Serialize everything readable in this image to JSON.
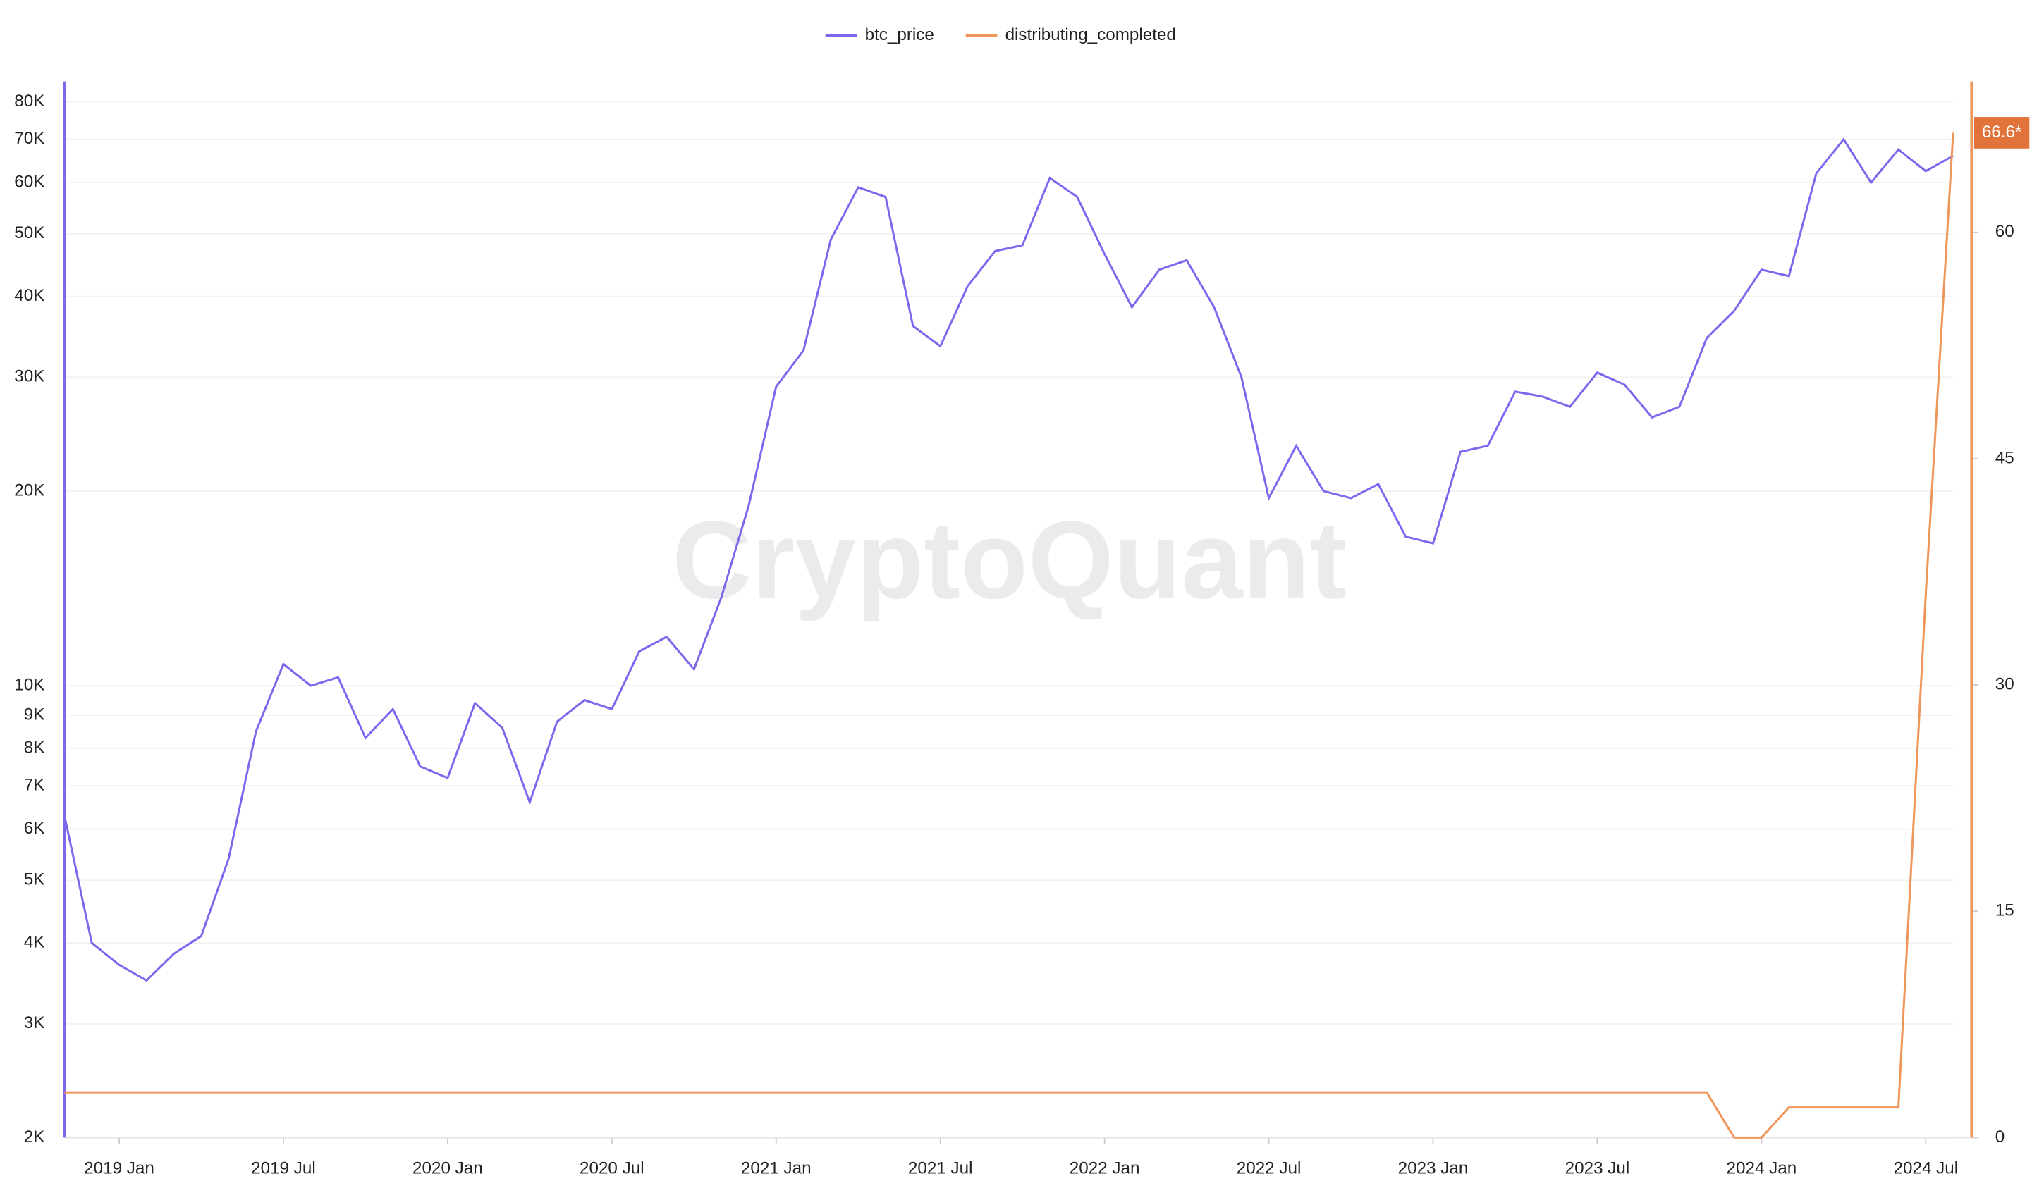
{
  "chart_data": {
    "type": "line",
    "watermark": "CryptoQuant",
    "x": [
      "2018-11",
      "2018-12",
      "2019-01",
      "2019-02",
      "2019-03",
      "2019-04",
      "2019-05",
      "2019-06",
      "2019-07",
      "2019-08",
      "2019-09",
      "2019-10",
      "2019-11",
      "2019-12",
      "2020-01",
      "2020-02",
      "2020-03",
      "2020-04",
      "2020-05",
      "2020-06",
      "2020-07",
      "2020-08",
      "2020-09",
      "2020-10",
      "2020-11",
      "2020-12",
      "2021-01",
      "2021-02",
      "2021-03",
      "2021-04",
      "2021-05",
      "2021-06",
      "2021-07",
      "2021-08",
      "2021-09",
      "2021-10",
      "2021-11",
      "2021-12",
      "2022-01",
      "2022-02",
      "2022-03",
      "2022-04",
      "2022-05",
      "2022-06",
      "2022-07",
      "2022-08",
      "2022-09",
      "2022-10",
      "2022-11",
      "2022-12",
      "2023-01",
      "2023-02",
      "2023-03",
      "2023-04",
      "2023-05",
      "2023-06",
      "2023-07",
      "2023-08",
      "2023-09",
      "2023-10",
      "2023-11",
      "2023-12",
      "2024-01",
      "2024-02",
      "2024-03",
      "2024-04",
      "2024-05",
      "2024-06",
      "2024-07",
      "2024-08"
    ],
    "xlim": [
      "2018-11",
      "2024-08"
    ],
    "xticks": [
      {
        "value": "2019-01",
        "label": "2019 Jan"
      },
      {
        "value": "2019-07",
        "label": "2019 Jul"
      },
      {
        "value": "2020-01",
        "label": "2020 Jan"
      },
      {
        "value": "2020-07",
        "label": "2020 Jul"
      },
      {
        "value": "2021-01",
        "label": "2021 Jan"
      },
      {
        "value": "2021-07",
        "label": "2021 Jul"
      },
      {
        "value": "2022-01",
        "label": "2022 Jan"
      },
      {
        "value": "2022-07",
        "label": "2022 Jul"
      },
      {
        "value": "2023-01",
        "label": "2023 Jan"
      },
      {
        "value": "2023-07",
        "label": "2023 Jul"
      },
      {
        "value": "2024-01",
        "label": "2024 Jan"
      },
      {
        "value": "2024-07",
        "label": "2024 Jul"
      }
    ],
    "yscale": "log",
    "ylim": [
      2000,
      86000
    ],
    "yticks": [
      {
        "value": 2000,
        "label": "2K"
      },
      {
        "value": 3000,
        "label": "3K"
      },
      {
        "value": 4000,
        "label": "4K"
      },
      {
        "value": 5000,
        "label": "5K"
      },
      {
        "value": 6000,
        "label": "6K"
      },
      {
        "value": 7000,
        "label": "7K"
      },
      {
        "value": 8000,
        "label": "8K"
      },
      {
        "value": 9000,
        "label": "9K"
      },
      {
        "value": 10000,
        "label": "10K"
      },
      {
        "value": 20000,
        "label": "20K"
      },
      {
        "value": 30000,
        "label": "30K"
      },
      {
        "value": 40000,
        "label": "40K"
      },
      {
        "value": 50000,
        "label": "50K"
      },
      {
        "value": 60000,
        "label": "60K"
      },
      {
        "value": 70000,
        "label": "70K"
      },
      {
        "value": 80000,
        "label": "80K"
      }
    ],
    "y2lim": [
      0,
      70
    ],
    "y2ticks": [
      0,
      15,
      30,
      45,
      60
    ],
    "grid": true,
    "legend": "top",
    "series": [
      {
        "name": "btc_price",
        "color": "#7b68ee",
        "values": [
          6300,
          4000,
          3700,
          3500,
          3850,
          4100,
          5400,
          8500,
          10800,
          10000,
          10300,
          8300,
          9200,
          7500,
          7200,
          9400,
          8600,
          6600,
          8800,
          9500,
          9200,
          11300,
          11900,
          10600,
          13700,
          19000,
          29000,
          33000,
          49000,
          59000,
          57000,
          36000,
          33500,
          41500,
          47000,
          48000,
          61000,
          57000,
          46500,
          38500,
          44000,
          45500,
          38500,
          30000,
          19500,
          23500,
          20000,
          19500,
          20500,
          17000,
          16600,
          23000,
          23500,
          28500,
          28000,
          27000,
          30500,
          29200,
          26000,
          27000,
          34500,
          38000,
          44000,
          43000,
          62000,
          70000,
          60000,
          67500,
          62500,
          66000
        ]
      },
      {
        "name": "distributing_completed",
        "color": "#f0955a",
        "axis": "y2",
        "values": [
          3,
          3,
          3,
          3,
          3,
          3,
          3,
          3,
          3,
          3,
          3,
          3,
          3,
          3,
          3,
          3,
          3,
          3,
          3,
          3,
          3,
          3,
          3,
          3,
          3,
          3,
          3,
          3,
          3,
          3,
          3,
          3,
          3,
          3,
          3,
          3,
          3,
          3,
          3,
          3,
          3,
          3,
          3,
          3,
          3,
          3,
          3,
          3,
          3,
          3,
          3,
          3,
          3,
          3,
          3,
          3,
          3,
          3,
          3,
          3,
          3,
          0,
          0,
          2,
          2,
          2,
          2,
          2,
          36,
          66.6
        ],
        "value_labels": [
          null,
          null,
          null,
          null,
          null,
          null,
          null,
          null,
          null,
          null,
          null,
          null,
          null,
          null,
          null,
          null,
          null,
          null,
          null,
          null,
          null,
          null,
          null,
          null,
          null,
          null,
          null,
          null,
          null,
          null,
          null,
          null,
          null,
          null,
          null,
          null,
          null,
          null,
          null,
          null,
          null,
          null,
          null,
          null,
          null,
          null,
          null,
          null,
          null,
          null,
          null,
          null,
          null,
          null,
          null,
          null,
          null,
          null,
          null,
          null,
          null,
          null,
          null,
          null,
          null,
          null,
          null,
          null,
          null,
          "66.6*"
        ]
      }
    ]
  }
}
